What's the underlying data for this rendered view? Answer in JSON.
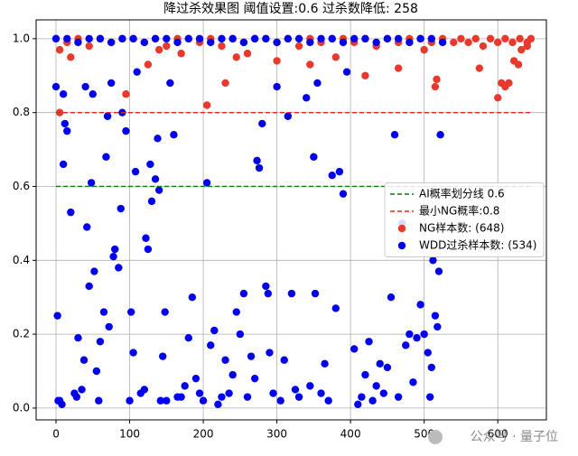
{
  "chart_data": {
    "type": "scatter",
    "title": "降过杀效果图 阈值设置:0.6 过杀数降低: 258",
    "xlim": [
      -27,
      666
    ],
    "ylim": [
      -0.032,
      1.051
    ],
    "xticks": [
      0,
      100,
      200,
      300,
      400,
      500,
      600
    ],
    "yticks": [
      {
        "value": 0,
        "label": "0.0"
      },
      0.2,
      0.4,
      0.6,
      0.8,
      {
        "value": 1,
        "label": "1.0"
      }
    ],
    "grid": true,
    "legend": "center right",
    "reference_lines": [
      {
        "name": "AI概率划分线 0.6",
        "value": 0.6,
        "color": "#008000"
      },
      {
        "name": "最小NG概率:0.8",
        "value": 0.8,
        "color": "#e8271f"
      }
    ],
    "series": [
      {
        "name": "NG样本数: (648)",
        "color": "#e8392c",
        "x": [
          5,
          5,
          95,
          125,
          170,
          205,
          230,
          245,
          300,
          345,
          420,
          465,
          515,
          517,
          575,
          600,
          605,
          610,
          615,
          622,
          628,
          632,
          640,
          0,
          15,
          30,
          45,
          60,
          75,
          90,
          105,
          120,
          135,
          150,
          165,
          180,
          195,
          210,
          225,
          240,
          255,
          270,
          285,
          300,
          315,
          330,
          345,
          360,
          375,
          390,
          405,
          420,
          435,
          450,
          465,
          480,
          495,
          510,
          525,
          540,
          550,
          560,
          570,
          580,
          590,
          600,
          610,
          620,
          630,
          640,
          645,
          20,
          140,
          260,
          380,
          500
        ],
        "values": [
          0.8,
          0.97,
          0.85,
          0.93,
          0.96,
          0.82,
          0.88,
          0.95,
          0.94,
          0.93,
          0.9,
          0.92,
          0.87,
          0.89,
          0.92,
          0.84,
          0.88,
          0.87,
          0.88,
          0.94,
          0.93,
          0.97,
          0.98,
          1.0,
          0.99,
          1.0,
          0.98,
          1.0,
          0.99,
          1.0,
          1.0,
          0.99,
          1.0,
          0.98,
          1.0,
          1.0,
          0.99,
          1.0,
          0.98,
          1.0,
          0.99,
          1.0,
          1.0,
          0.99,
          1.0,
          0.98,
          1.0,
          0.99,
          1.0,
          1.0,
          0.99,
          1.0,
          0.98,
          1.0,
          0.99,
          1.0,
          1.0,
          0.99,
          1.0,
          0.99,
          1.0,
          0.99,
          1.0,
          0.98,
          1.0,
          0.99,
          1.0,
          0.99,
          1.0,
          0.99,
          1.0,
          0.95,
          0.97,
          0.96,
          0.95,
          0.97
        ]
      },
      {
        "name": "WDD过杀样本数: (534)",
        "color": "#0000ee",
        "x": [
          0,
          2,
          3,
          5,
          8,
          10,
          10,
          12,
          15,
          20,
          25,
          28,
          30,
          35,
          38,
          40,
          42,
          45,
          48,
          50,
          52,
          55,
          58,
          60,
          65,
          68,
          70,
          72,
          75,
          78,
          80,
          85,
          88,
          90,
          95,
          100,
          102,
          105,
          108,
          110,
          115,
          120,
          122,
          125,
          128,
          130,
          135,
          138,
          140,
          142,
          145,
          148,
          150,
          155,
          160,
          165,
          170,
          175,
          180,
          185,
          190,
          195,
          200,
          205,
          210,
          215,
          220,
          225,
          230,
          235,
          240,
          245,
          250,
          255,
          260,
          265,
          270,
          273,
          276,
          280,
          285,
          288,
          290,
          295,
          300,
          305,
          310,
          315,
          320,
          325,
          330,
          340,
          345,
          350,
          352,
          355,
          360,
          365,
          370,
          375,
          380,
          385,
          390,
          395,
          405,
          410,
          415,
          420,
          425,
          430,
          435,
          440,
          445,
          450,
          455,
          460,
          465,
          470,
          475,
          480,
          485,
          490,
          495,
          500,
          505,
          508,
          510,
          512,
          515,
          518,
          520,
          522,
          0,
          15,
          30,
          45,
          60,
          75,
          90,
          105,
          120,
          135,
          150,
          165,
          180,
          195,
          210,
          225,
          240,
          255,
          270,
          285,
          300,
          315,
          330,
          345,
          360,
          375,
          390,
          405,
          420,
          435,
          450,
          465,
          480,
          495,
          510,
          525
        ],
        "values": [
          0.87,
          0.25,
          0.02,
          0.02,
          0.01,
          0.66,
          0.85,
          0.77,
          0.75,
          0.53,
          0.04,
          0.03,
          0.19,
          0.05,
          0.13,
          0.87,
          0.49,
          0.33,
          0.61,
          0.85,
          0.37,
          0.1,
          0.02,
          0.18,
          0.26,
          0.68,
          0.79,
          0.22,
          0.88,
          0.41,
          0.43,
          0.38,
          0.54,
          0.8,
          0.75,
          0.02,
          0.26,
          0.15,
          0.64,
          0.91,
          0.04,
          0.05,
          0.46,
          0.43,
          0.66,
          0.56,
          0.62,
          0.73,
          0.59,
          0.02,
          0.14,
          0.26,
          0.02,
          0.88,
          0.74,
          0.03,
          0.03,
          0.06,
          0.19,
          0.3,
          0.08,
          0.04,
          0.02,
          0.61,
          0.17,
          0.21,
          0.01,
          0.03,
          0.13,
          0.04,
          0.09,
          0.26,
          0.2,
          0.31,
          0.03,
          0.14,
          0.08,
          0.67,
          0.65,
          0.77,
          0.33,
          0.31,
          0.15,
          0.04,
          0.87,
          0.02,
          0.13,
          0.79,
          0.31,
          0.05,
          0.03,
          0.84,
          0.06,
          0.68,
          0.31,
          0.88,
          0.04,
          0.12,
          0.02,
          0.63,
          0.27,
          0.64,
          0.58,
          0.91,
          0.16,
          0.01,
          0.03,
          0.09,
          0.18,
          0.02,
          0.06,
          0.12,
          0.04,
          0.11,
          0.3,
          0.74,
          0.03,
          0.5,
          0.17,
          0.2,
          0.07,
          0.19,
          0.28,
          0.2,
          0.15,
          0.03,
          0.11,
          0.4,
          0.25,
          0.22,
          0.37,
          0.74,
          1.0,
          1.0,
          0.99,
          1.0,
          1.0,
          0.99,
          1.0,
          1.0,
          0.99,
          1.0,
          1.0,
          0.99,
          1.0,
          1.0,
          0.99,
          1.0,
          1.0,
          0.99,
          1.0,
          1.0,
          0.99,
          1.0,
          1.0,
          0.99,
          1.0,
          1.0,
          0.99,
          1.0,
          1.0,
          0.99,
          1.0,
          1.0,
          0.99,
          1.0,
          1.0,
          0.99
        ]
      }
    ],
    "watermark": "公众号 · 量子位"
  }
}
